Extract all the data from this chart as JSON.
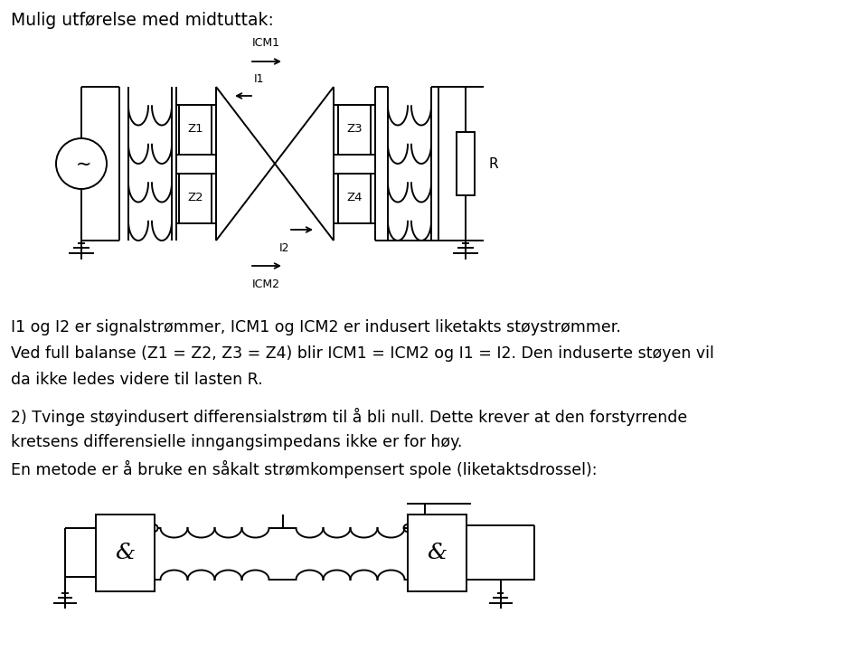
{
  "title": "Mulig utførelse med midtuttak:",
  "para1": "I1 og I2 er signalstrømmer, ICM1 og ICM2 er indusert liketakts støystrømmer.",
  "para2": "Ved full balanse (Z1 = Z2, Z3 = Z4) blir ICM1 = ICM2 og I1 = I2. Den induserte støyen vil",
  "para3": "da ikke ledes videre til lasten R.",
  "para4": "2) Tvinge støyindusert differensialstrøm til å bli null. Dette krever at den forstyrrende",
  "para5": "kretsens differensielle inngangsimpedans ikke er for høy.",
  "para6": "En metode er å bruke en såkalt strømkompensert spole (liketaktsdrossel):",
  "bg": "#ffffff"
}
